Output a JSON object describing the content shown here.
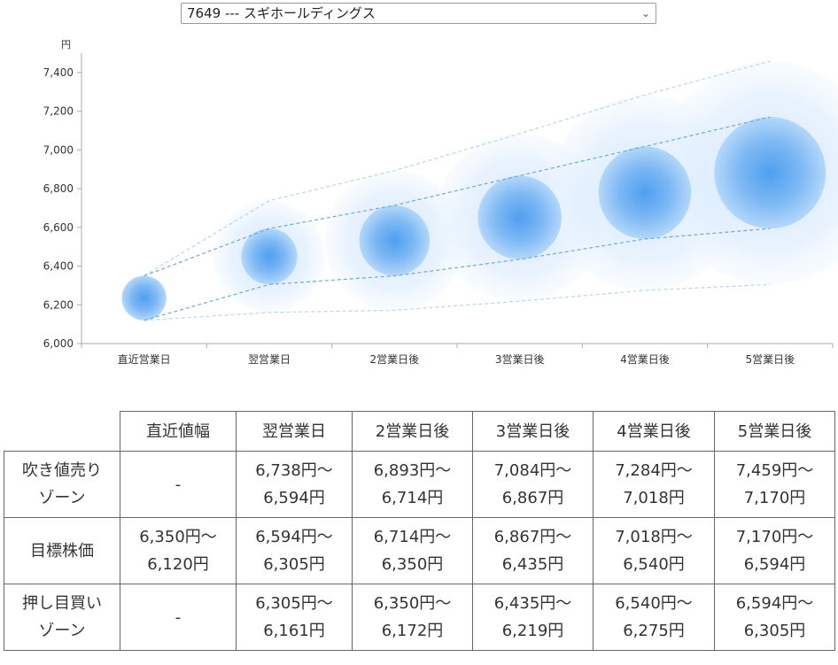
{
  "selector": {
    "value": "7649 --- スギホールディングス",
    "chevron_icon": "chevron-down-icon"
  },
  "chart_data": {
    "type": "scatter",
    "subtype": "bubble",
    "y_unit": "円",
    "categories": [
      "直近営業日",
      "翌営業日",
      "2営業日後",
      "3営業日後",
      "4営業日後",
      "5営業日後"
    ],
    "ylim": [
      6000,
      7500
    ],
    "yticks": [
      6000,
      6200,
      6400,
      6600,
      6800,
      7000,
      7200,
      7400
    ],
    "ytick_labels": [
      "6,000",
      "6,200",
      "6,400",
      "6,600",
      "6,800",
      "7,000",
      "7,200",
      "7,400"
    ],
    "center_values": [
      6235,
      6450,
      6532,
      6651,
      6779,
      6882
    ],
    "inner_band": {
      "upper": [
        6350,
        6594,
        6714,
        6867,
        7018,
        7170
      ],
      "lower": [
        6120,
        6305,
        6350,
        6435,
        6540,
        6594
      ]
    },
    "outer_band": {
      "upper": [
        6350,
        6738,
        6893,
        7084,
        7284,
        7459
      ],
      "lower": [
        6120,
        6161,
        6172,
        6219,
        6275,
        6305
      ]
    },
    "grid": false,
    "colors": {
      "bubble_core": "#4f9ff0",
      "bubble_mid": "#9ecbf7",
      "bubble_halo": "#dcecfc",
      "inner_line": "#6fa8d8",
      "outer_line": "#b9d5ee",
      "axis": "#aaaaaa"
    }
  },
  "table": {
    "headers": [
      "",
      "直近値幅",
      "翌営業日",
      "2営業日後",
      "3営業日後",
      "4営業日後",
      "5営業日後"
    ],
    "rows": [
      {
        "label": [
          "吹き値売り",
          "ゾーン"
        ],
        "cells": [
          [
            "-"
          ],
          [
            "6,738円～",
            "6,594円"
          ],
          [
            "6,893円～",
            "6,714円"
          ],
          [
            "7,084円～",
            "6,867円"
          ],
          [
            "7,284円～",
            "7,018円"
          ],
          [
            "7,459円～",
            "7,170円"
          ]
        ]
      },
      {
        "label": [
          "目標株価"
        ],
        "cells": [
          [
            "6,350円～",
            "6,120円"
          ],
          [
            "6,594円～",
            "6,305円"
          ],
          [
            "6,714円～",
            "6,350円"
          ],
          [
            "6,867円～",
            "6,435円"
          ],
          [
            "7,018円～",
            "6,540円"
          ],
          [
            "7,170円～",
            "6,594円"
          ]
        ]
      },
      {
        "label": [
          "押し目買い",
          "ゾーン"
        ],
        "cells": [
          [
            "-"
          ],
          [
            "6,305円～",
            "6,161円"
          ],
          [
            "6,350円～",
            "6,172円"
          ],
          [
            "6,435円～",
            "6,219円"
          ],
          [
            "6,540円～",
            "6,275円"
          ],
          [
            "6,594円～",
            "6,305円"
          ]
        ]
      }
    ]
  }
}
